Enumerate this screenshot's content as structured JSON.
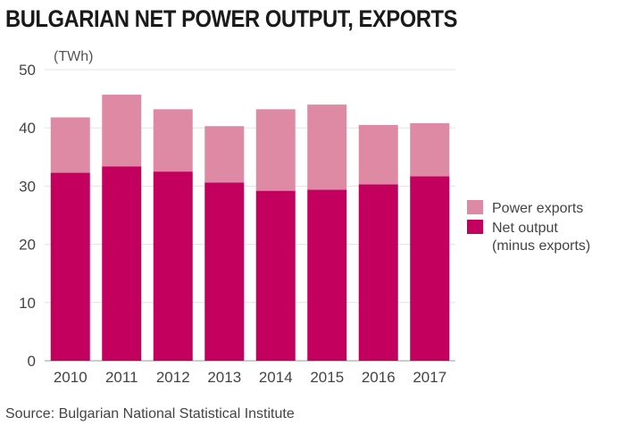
{
  "title": "BULGARIAN NET POWER OUTPUT, EXPORTS",
  "source": "Source: Bulgarian National Statistical Institute",
  "colors": {
    "net_output": "#c4005f",
    "exports": "#de8aa5",
    "grid": "#e3e3e3",
    "text": "#444444"
  },
  "chart_data": {
    "type": "bar",
    "stacked": true,
    "title": "BULGARIAN NET POWER OUTPUT, EXPORTS",
    "ylabel": "(TWh)",
    "xlabel": "",
    "ylim": [
      0,
      50
    ],
    "yticks": [
      0,
      10,
      20,
      30,
      40,
      50
    ],
    "grid": true,
    "legend_position": "right",
    "categories": [
      "2010",
      "2011",
      "2012",
      "2013",
      "2014",
      "2015",
      "2016",
      "2017"
    ],
    "series": [
      {
        "name": "Net output (minus exports)",
        "legend_lines": [
          "Net output",
          "(minus exports)"
        ],
        "color": "#c4005f",
        "values": [
          32.3,
          33.4,
          32.5,
          30.6,
          29.2,
          29.4,
          30.3,
          31.7
        ]
      },
      {
        "name": "Power exports",
        "legend_lines": [
          "Power exports"
        ],
        "color": "#de8aa5",
        "values": [
          9.5,
          12.3,
          10.7,
          9.7,
          14.0,
          14.6,
          10.2,
          9.1
        ]
      }
    ]
  }
}
